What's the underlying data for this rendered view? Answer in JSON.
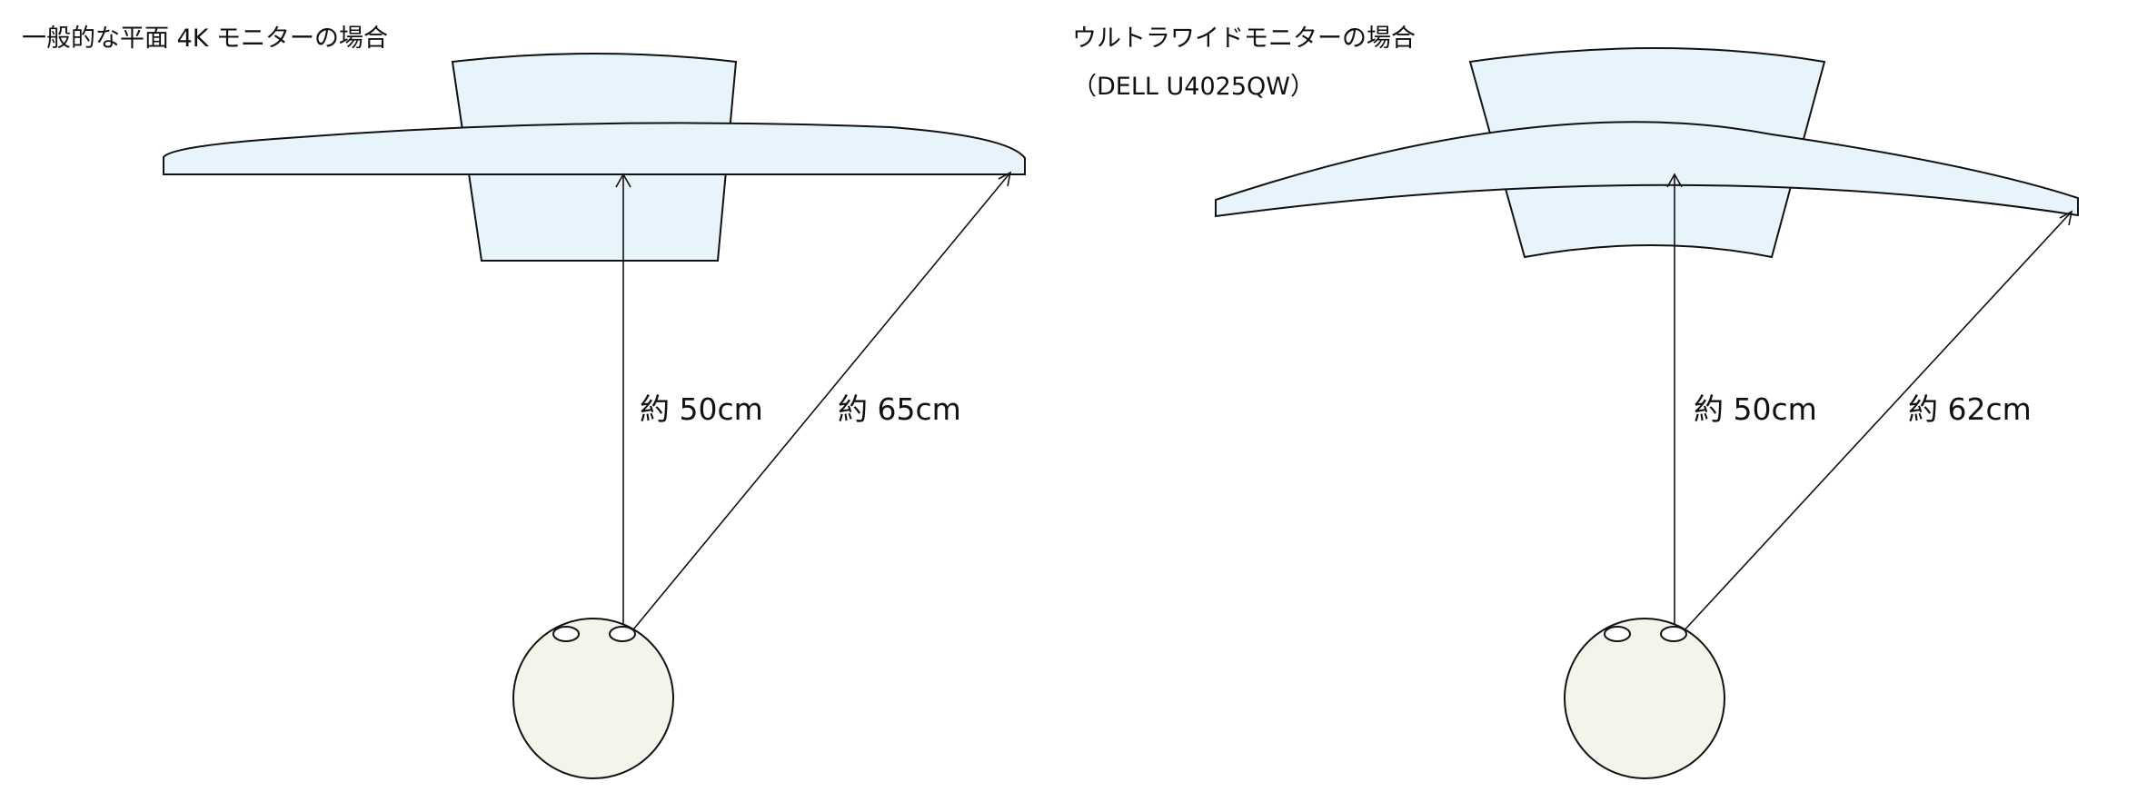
{
  "left_panel": {
    "title": "一般的な平面 4K モニターの場合",
    "distance_center": "約 50cm",
    "distance_edge": "約 65cm"
  },
  "right_panel": {
    "title_line1": "ウルトラワイドモニターの場合",
    "title_line2": "（DELL U4025QW）",
    "distance_center": "約 50cm",
    "distance_edge": "約 62cm"
  },
  "colors": {
    "desk_fill": "#e8f4fb",
    "head_fill": "#f4f4ea",
    "stroke": "#111111"
  }
}
